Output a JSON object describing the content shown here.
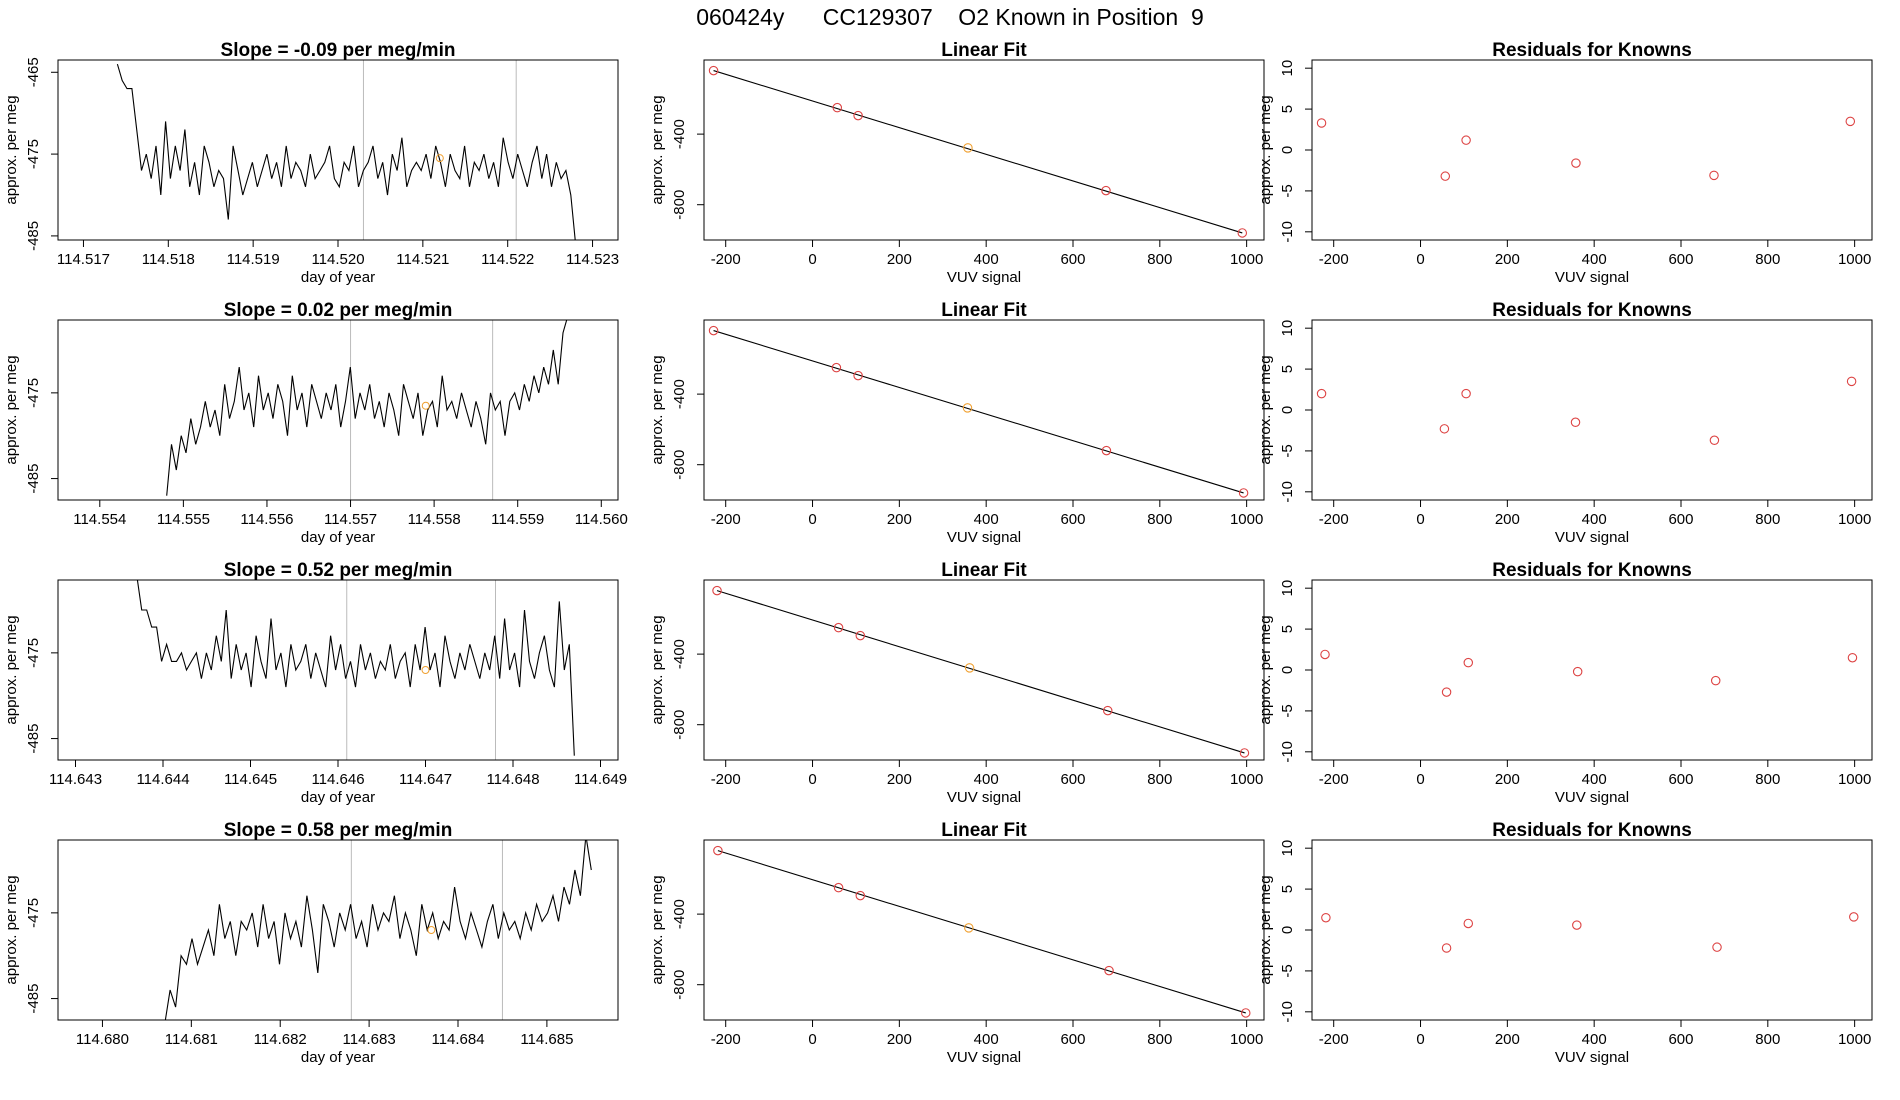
{
  "page_title": "060424y      CC129307    O2 Known in Position  9",
  "colors": {
    "line": "#000000",
    "known_point": "#dd4444",
    "sample_point": "#f0a030",
    "marker_line": "#bbbbbb",
    "frame": "#000000"
  },
  "chart_data": [
    {
      "type": "line",
      "title": "Slope =  -0.09  per meg/min",
      "xlabel": "day of year",
      "ylabel": "approx. per meg",
      "xlim": [
        114.5167,
        114.5233
      ],
      "ylim": [
        -485.5,
        -463.5
      ],
      "x_ticks": [
        "114.517",
        "114.518",
        "114.519",
        "114.520",
        "114.521",
        "114.522",
        "114.523"
      ],
      "y_ticks": [
        "-465",
        "-475",
        "-485"
      ],
      "series": [
        {
          "x_start": 114.5174,
          "x_end": 114.5228,
          "y": [
            -464,
            -466,
            -467,
            -467,
            -472,
            -477,
            -475,
            -478,
            -474,
            -480,
            -471,
            -478,
            -474,
            -477,
            -472,
            -479,
            -476,
            -480,
            -474,
            -476,
            -479,
            -477,
            -478,
            -483,
            -474,
            -477,
            -480,
            -478,
            -476,
            -479,
            -477,
            -475,
            -478,
            -476,
            -479,
            -474,
            -478,
            -476,
            -477,
            -479,
            -475,
            -478,
            -477,
            -476,
            -474,
            -478,
            -479,
            -476,
            -477,
            -474,
            -479,
            -477,
            -476,
            -474,
            -478,
            -476,
            -480,
            -475,
            -477,
            -473,
            -479,
            -477,
            -476,
            -477,
            -475,
            -478,
            -474,
            -476,
            -479,
            -475,
            -477,
            -478,
            -474,
            -479,
            -476,
            -477,
            -475,
            -478,
            -476,
            -479,
            -473,
            -476,
            -478,
            -475,
            -477,
            -479,
            -476,
            -474,
            -478,
            -475,
            -479,
            -476,
            -478,
            -477,
            -480,
            -486
          ]
        }
      ],
      "markers": [
        114.5203,
        114.5221
      ],
      "sample_point": [
        114.5212,
        -475.5
      ]
    },
    {
      "type": "line",
      "title": "Slope =  0.02  per meg/min",
      "xlabel": "day of year",
      "ylabel": "approx. per meg",
      "xlim": [
        114.5535,
        114.5602
      ],
      "ylim": [
        -487.5,
        -466.5
      ],
      "x_ticks": [
        "114.554",
        "114.555",
        "114.556",
        "114.557",
        "114.558",
        "114.559",
        "114.560"
      ],
      "y_ticks": [
        "-475",
        "-485"
      ],
      "series": [
        {
          "x_start": 114.5548,
          "x_end": 114.5596,
          "y": [
            -487,
            -481,
            -484,
            -480,
            -482,
            -478,
            -481,
            -479,
            -476,
            -479,
            -477,
            -480,
            -474,
            -478,
            -476,
            -472,
            -477,
            -475,
            -479,
            -473,
            -477,
            -475,
            -478,
            -474,
            -476,
            -480,
            -473,
            -477,
            -475,
            -479,
            -474,
            -476,
            -478,
            -475,
            -477,
            -474,
            -479,
            -476,
            -472,
            -478,
            -475,
            -477,
            -474,
            -478,
            -476,
            -479,
            -475,
            -477,
            -480,
            -474,
            -476,
            -478,
            -475,
            -480,
            -477,
            -476,
            -479,
            -473,
            -477,
            -476,
            -478,
            -475,
            -477,
            -479,
            -476,
            -478,
            -481,
            -475,
            -477,
            -476,
            -480,
            -476,
            -475,
            -477,
            -474,
            -476,
            -473,
            -475,
            -472,
            -474,
            -470,
            -474,
            -468,
            -466
          ]
        }
      ],
      "markers": [
        114.557,
        114.5587
      ],
      "sample_point": [
        114.5579,
        -476.5
      ]
    },
    {
      "type": "line",
      "title": "Slope =  0.52  per meg/min",
      "xlabel": "day of year",
      "ylabel": "approx. per meg",
      "xlim": [
        114.6428,
        114.6492
      ],
      "ylim": [
        -487.5,
        -466.5
      ],
      "x_ticks": [
        "114.643",
        "114.644",
        "114.645",
        "114.646",
        "114.647",
        "114.648",
        "114.649"
      ],
      "y_ticks": [
        "-475",
        "-485"
      ],
      "series": [
        {
          "x_start": 114.6437,
          "x_end": 114.6487,
          "y": [
            -466,
            -470,
            -470,
            -472,
            -472,
            -476,
            -474,
            -476,
            -476,
            -475,
            -477,
            -476,
            -475,
            -478,
            -475,
            -477,
            -473,
            -476,
            -470,
            -478,
            -474,
            -477,
            -475,
            -479,
            -473,
            -476,
            -478,
            -471,
            -477,
            -475,
            -479,
            -474,
            -477,
            -476,
            -474,
            -478,
            -475,
            -477,
            -479,
            -473,
            -477,
            -474,
            -478,
            -476,
            -479,
            -474,
            -477,
            -475,
            -478,
            -476,
            -477,
            -474,
            -478,
            -476,
            -475,
            -479,
            -474,
            -477,
            -472,
            -477,
            -475,
            -479,
            -473,
            -476,
            -478,
            -475,
            -477,
            -474,
            -476,
            -478,
            -475,
            -477,
            -473,
            -478,
            -471,
            -477,
            -475,
            -479,
            -470,
            -476,
            -478,
            -475,
            -473,
            -477,
            -479,
            -469,
            -477,
            -474,
            -487
          ]
        }
      ],
      "markers": [
        114.6461,
        114.6478
      ],
      "sample_point": [
        114.647,
        -477
      ]
    },
    {
      "type": "line",
      "title": "Slope =  0.58  per meg/min",
      "xlabel": "day of year",
      "ylabel": "approx. per meg",
      "xlim": [
        114.6795,
        114.6858
      ],
      "ylim": [
        -487.5,
        -466.5
      ],
      "x_ticks": [
        "114.680",
        "114.681",
        "114.682",
        "114.683",
        "114.684",
        "114.685"
      ],
      "y_ticks": [
        "-475",
        "-485"
      ],
      "series": [
        {
          "x_start": 114.6807,
          "x_end": 114.6855,
          "y": [
            -488,
            -484,
            -486,
            -480,
            -481,
            -478,
            -481,
            -479,
            -477,
            -480,
            -474,
            -478,
            -476,
            -480,
            -476,
            -477,
            -475,
            -479,
            -474,
            -478,
            -476,
            -481,
            -475,
            -478,
            -476,
            -479,
            -473,
            -477,
            -482,
            -474,
            -476,
            -479,
            -475,
            -477,
            -474,
            -478,
            -476,
            -479,
            -474,
            -477,
            -475,
            -476,
            -473,
            -478,
            -475,
            -477,
            -480,
            -474,
            -477,
            -475,
            -478,
            -476,
            -477,
            -472,
            -476,
            -478,
            -475,
            -477,
            -479,
            -476,
            -474,
            -478,
            -475,
            -477,
            -476,
            -478,
            -475,
            -477,
            -474,
            -476,
            -475,
            -473,
            -476,
            -472,
            -474,
            -470,
            -473,
            -466,
            -470
          ]
        }
      ],
      "markers": [
        114.6828,
        114.6845
      ],
      "sample_point": [
        114.6837,
        -477
      ]
    },
    {
      "type": "scatter",
      "title": "Linear Fit",
      "xlabel": "VUV signal",
      "ylabel": "approx. per meg",
      "xlim": [
        -250,
        1040
      ],
      "ylim": [
        -1000,
        20
      ],
      "x_ticks": [
        "-200",
        "0",
        "200",
        "400",
        "600",
        "800",
        "1000"
      ],
      "y_ticks": [
        "-400",
        "-800"
      ],
      "fit_line": [
        [
          -228,
          -40
        ],
        [
          990,
          -960
        ]
      ],
      "points": [
        [
          -228,
          -40
        ],
        [
          57,
          -250
        ],
        [
          105,
          -295
        ],
        [
          358,
          -478
        ],
        [
          676,
          -720
        ],
        [
          990,
          -960
        ]
      ],
      "sample_index": 3
    },
    {
      "type": "scatter",
      "title": "Linear Fit",
      "xlabel": "VUV signal",
      "ylabel": "approx. per meg",
      "xlim": [
        -250,
        1040
      ],
      "ylim": [
        -1000,
        20
      ],
      "x_ticks": [
        "-200",
        "0",
        "200",
        "400",
        "600",
        "800",
        "1000"
      ],
      "y_ticks": [
        "-400",
        "-800"
      ],
      "fit_line": [
        [
          -228,
          -40
        ],
        [
          993,
          -960
        ]
      ],
      "points": [
        [
          -228,
          -40
        ],
        [
          55,
          -250
        ],
        [
          105,
          -295
        ],
        [
          357,
          -478
        ],
        [
          677,
          -720
        ],
        [
          993,
          -960
        ]
      ],
      "sample_index": 3
    },
    {
      "type": "scatter",
      "title": "Linear Fit",
      "xlabel": "VUV signal",
      "ylabel": "approx. per meg",
      "xlim": [
        -250,
        1040
      ],
      "ylim": [
        -1000,
        20
      ],
      "x_ticks": [
        "-200",
        "0",
        "200",
        "400",
        "600",
        "800",
        "1000"
      ],
      "y_ticks": [
        "-400",
        "-800"
      ],
      "fit_line": [
        [
          -220,
          -40
        ],
        [
          995,
          -960
        ]
      ],
      "points": [
        [
          -220,
          -40
        ],
        [
          60,
          -250
        ],
        [
          110,
          -295
        ],
        [
          362,
          -478
        ],
        [
          680,
          -720
        ],
        [
          995,
          -960
        ]
      ],
      "sample_index": 3
    },
    {
      "type": "scatter",
      "title": "Linear Fit",
      "xlabel": "VUV signal",
      "ylabel": "approx. per meg",
      "xlim": [
        -250,
        1040
      ],
      "ylim": [
        -1000,
        20
      ],
      "x_ticks": [
        "-200",
        "0",
        "200",
        "400",
        "600",
        "800",
        "1000"
      ],
      "y_ticks": [
        "-400",
        "-800"
      ],
      "fit_line": [
        [
          -218,
          -40
        ],
        [
          998,
          -960
        ]
      ],
      "points": [
        [
          -218,
          -40
        ],
        [
          60,
          -250
        ],
        [
          110,
          -295
        ],
        [
          360,
          -478
        ],
        [
          683,
          -720
        ],
        [
          998,
          -960
        ]
      ],
      "sample_index": 3
    },
    {
      "type": "scatter",
      "title": "Residuals for Knowns",
      "xlabel": "VUV signal",
      "ylabel": "approx. per meg",
      "xlim": [
        -250,
        1040
      ],
      "ylim": [
        -11,
        11
      ],
      "x_ticks": [
        "-200",
        "0",
        "200",
        "400",
        "600",
        "800",
        "1000"
      ],
      "y_ticks": [
        "10",
        "5",
        "0",
        "-5",
        "-10"
      ],
      "points": [
        [
          -228,
          3.3
        ],
        [
          57,
          -3.2
        ],
        [
          105,
          1.2
        ],
        [
          358,
          -1.6
        ],
        [
          676,
          -3.1
        ],
        [
          990,
          3.5
        ]
      ]
    },
    {
      "type": "scatter",
      "title": "Residuals for Knowns",
      "xlabel": "VUV signal",
      "ylabel": "approx. per meg",
      "xlim": [
        -250,
        1040
      ],
      "ylim": [
        -11,
        11
      ],
      "x_ticks": [
        "-200",
        "0",
        "200",
        "400",
        "600",
        "800",
        "1000"
      ],
      "y_ticks": [
        "10",
        "5",
        "0",
        "-5",
        "-10"
      ],
      "points": [
        [
          -228,
          2.0
        ],
        [
          55,
          -2.3
        ],
        [
          105,
          2.0
        ],
        [
          357,
          -1.5
        ],
        [
          677,
          -3.7
        ],
        [
          993,
          3.5
        ]
      ]
    },
    {
      "type": "scatter",
      "title": "Residuals for Knowns",
      "xlabel": "VUV signal",
      "ylabel": "approx. per meg",
      "xlim": [
        -250,
        1040
      ],
      "ylim": [
        -11,
        11
      ],
      "x_ticks": [
        "-200",
        "0",
        "200",
        "400",
        "600",
        "800",
        "1000"
      ],
      "y_ticks": [
        "10",
        "5",
        "0",
        "-5",
        "-10"
      ],
      "points": [
        [
          -220,
          1.9
        ],
        [
          60,
          -2.7
        ],
        [
          110,
          0.9
        ],
        [
          362,
          -0.2
        ],
        [
          680,
          -1.3
        ],
        [
          995,
          1.5
        ]
      ]
    },
    {
      "type": "scatter",
      "title": "Residuals for Knowns",
      "xlabel": "VUV signal",
      "ylabel": "approx. per meg",
      "xlim": [
        -250,
        1040
      ],
      "ylim": [
        -11,
        11
      ],
      "x_ticks": [
        "-200",
        "0",
        "200",
        "400",
        "600",
        "800",
        "1000"
      ],
      "y_ticks": [
        "10",
        "5",
        "0",
        "-5",
        "-10"
      ],
      "points": [
        [
          -218,
          1.5
        ],
        [
          60,
          -2.2
        ],
        [
          110,
          0.8
        ],
        [
          360,
          0.6
        ],
        [
          683,
          -2.1
        ],
        [
          998,
          1.6
        ]
      ]
    }
  ]
}
